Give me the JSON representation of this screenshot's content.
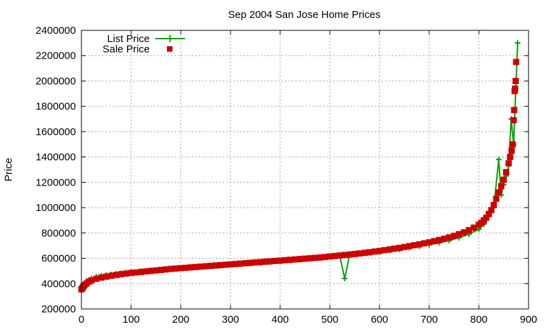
{
  "chart_data": {
    "type": "line",
    "title": "Sep 2004 San Jose Home Prices",
    "xlabel": "",
    "ylabel": "Price",
    "xlim": [
      0,
      900
    ],
    "ylim": [
      200000,
      2400000
    ],
    "xticks": [
      0,
      100,
      200,
      300,
      400,
      500,
      600,
      700,
      800,
      900
    ],
    "yticks": [
      200000,
      400000,
      600000,
      800000,
      1000000,
      1200000,
      1400000,
      1600000,
      1800000,
      2000000,
      2200000,
      2400000
    ],
    "grid": true,
    "legend_position": "top-left",
    "series": [
      {
        "name": "List Price",
        "color": "#00a000",
        "marker": "plus",
        "line": true,
        "x": [
          0,
          5,
          10,
          20,
          30,
          40,
          50,
          60,
          70,
          80,
          90,
          100,
          120,
          140,
          160,
          180,
          200,
          220,
          240,
          260,
          280,
          300,
          320,
          340,
          360,
          380,
          400,
          420,
          440,
          460,
          480,
          500,
          520,
          530,
          540,
          560,
          580,
          600,
          620,
          640,
          660,
          680,
          700,
          720,
          740,
          760,
          780,
          800,
          810,
          820,
          830,
          840,
          845,
          850,
          855,
          860,
          865,
          870,
          875,
          878
        ],
        "values": [
          350000,
          395000,
          420000,
          440000,
          455000,
          462000,
          468000,
          472000,
          478000,
          482000,
          488000,
          492000,
          498000,
          505000,
          512000,
          518000,
          522000,
          528000,
          532000,
          538000,
          542000,
          548000,
          552000,
          558000,
          562000,
          568000,
          575000,
          580000,
          588000,
          595000,
          605000,
          612000,
          620000,
          440000,
          628000,
          635000,
          642000,
          650000,
          660000,
          670000,
          682000,
          695000,
          708000,
          722000,
          740000,
          762000,
          790000,
          830000,
          870000,
          930000,
          1000000,
          1380000,
          1100000,
          1180000,
          1250000,
          1330000,
          1700000,
          1500000,
          2000000,
          2300000
        ]
      },
      {
        "name": "Sale Price",
        "color": "#cc0000",
        "marker": "square",
        "line": false,
        "x": [
          0,
          2,
          4,
          6,
          10,
          15,
          20,
          30,
          40,
          50,
          60,
          70,
          80,
          90,
          100,
          110,
          120,
          130,
          140,
          150,
          160,
          170,
          180,
          190,
          200,
          210,
          220,
          230,
          240,
          250,
          260,
          270,
          280,
          290,
          300,
          310,
          320,
          330,
          340,
          350,
          360,
          370,
          380,
          390,
          400,
          410,
          420,
          430,
          440,
          450,
          460,
          470,
          480,
          490,
          500,
          510,
          520,
          530,
          540,
          550,
          560,
          570,
          580,
          590,
          600,
          610,
          620,
          630,
          640,
          650,
          660,
          670,
          680,
          690,
          700,
          710,
          720,
          730,
          740,
          750,
          760,
          770,
          780,
          790,
          800,
          805,
          810,
          815,
          820,
          825,
          830,
          835,
          840,
          845,
          850,
          855,
          860,
          863,
          866,
          868,
          870,
          871,
          872,
          873,
          874,
          875
        ],
        "values": [
          355000,
          365000,
          378000,
          388000,
          400000,
          415000,
          425000,
          438000,
          448000,
          455000,
          462000,
          468000,
          474000,
          479000,
          484000,
          488000,
          492000,
          496000,
          500000,
          504000,
          508000,
          512000,
          516000,
          519000,
          522000,
          525000,
          528000,
          531000,
          534000,
          537000,
          540000,
          543000,
          546000,
          549000,
          552000,
          555000,
          558000,
          561000,
          564000,
          567000,
          570000,
          573000,
          576000,
          579000,
          582000,
          585000,
          588000,
          591000,
          594000,
          597000,
          600000,
          603000,
          606000,
          610000,
          614000,
          618000,
          622000,
          626000,
          630000,
          634000,
          638000,
          643000,
          648000,
          653000,
          658000,
          664000,
          670000,
          676000,
          682000,
          689000,
          696000,
          703000,
          710000,
          718000,
          726000,
          735000,
          744000,
          754000,
          765000,
          777000,
          790000,
          805000,
          822000,
          842000,
          865000,
          880000,
          900000,
          920000,
          950000,
          980000,
          1020000,
          1070000,
          1120000,
          1170000,
          1220000,
          1280000,
          1350000,
          1400000,
          1450000,
          1500000,
          1690000,
          1770000,
          1920000,
          1940000,
          2000000,
          2150000
        ]
      }
    ]
  }
}
